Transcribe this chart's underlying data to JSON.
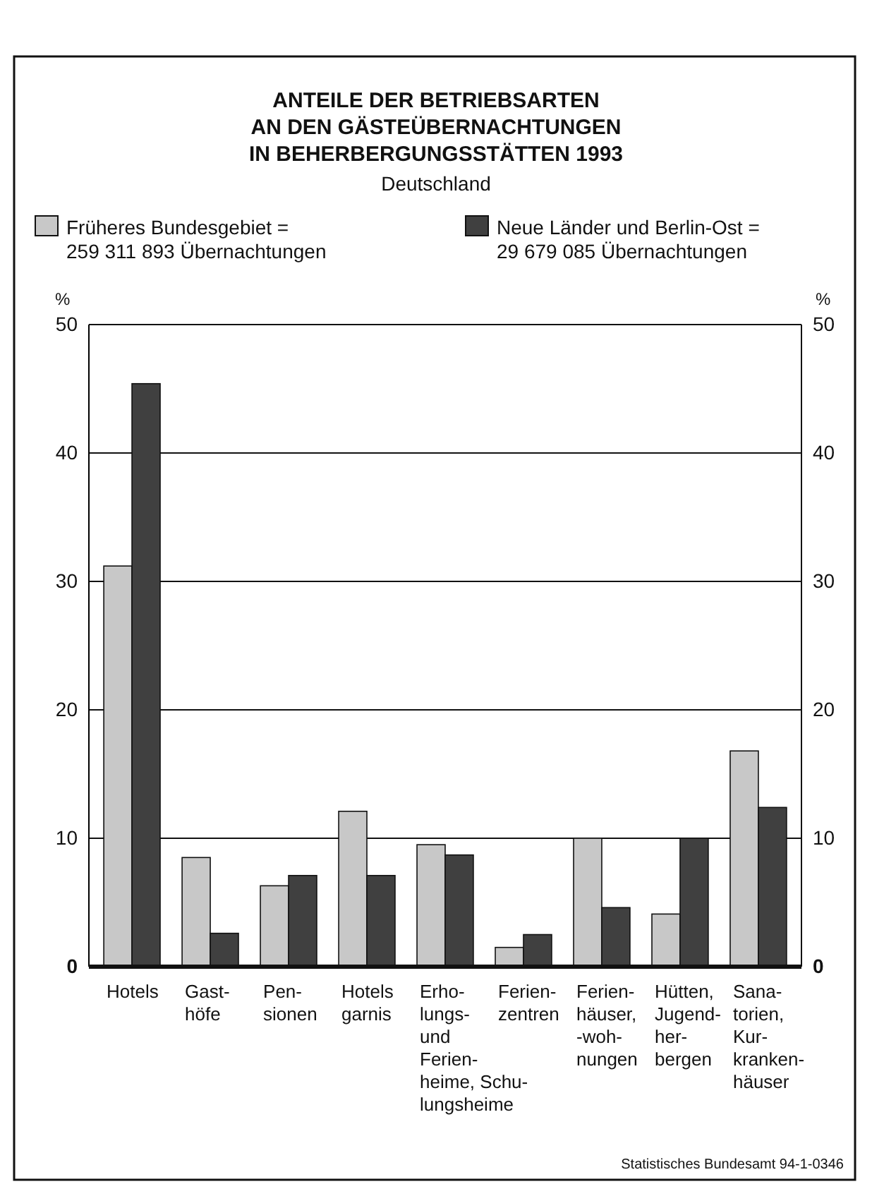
{
  "chart_data": {
    "type": "bar",
    "title": "ANTEILE DER BETRIEBSARTEN\nAN DEN GÄSTEÜBERNACHTUNGEN\nIN BEHERBERGUNGSSTÄTTEN 1993",
    "subtitle": "Deutschland",
    "ylabel": "%",
    "y2label": "%",
    "categories": [
      "Hotels",
      "Gast-\nhöfe",
      "Pen-\nsionen",
      "Hotels\ngarnis",
      "Erho-\nlungs-\nund\nFerien-\nheime, Schu-\nlungsheime",
      "Ferien-\nzentren",
      "Ferien-\nhäuser,\n-woh-\nnungen",
      "Hütten,\nJugend-\nher-\nbergen",
      "Sana-\ntorien,\nKur-\nkranken-\nhäuser"
    ],
    "series": [
      {
        "name": "Früheres Bundesgebiet =\n259 311 893 Übernachtungen",
        "color": "#c8c8c8",
        "values": [
          31.2,
          8.5,
          6.3,
          12.1,
          9.5,
          1.5,
          10.0,
          4.1,
          16.8
        ]
      },
      {
        "name": "Neue Länder und Berlin-Ost =\n29 679 085 Übernachtungen",
        "color": "#404040",
        "values": [
          45.4,
          2.6,
          7.1,
          7.1,
          8.7,
          2.5,
          4.6,
          10.0,
          12.4
        ]
      }
    ],
    "ylim": [
      0,
      50
    ],
    "yticks": [
      0,
      10,
      20,
      30,
      40,
      50
    ],
    "y2lim": [
      0,
      50
    ],
    "y2ticks": [
      0,
      10,
      20,
      30,
      40,
      50
    ],
    "grid": "y",
    "legend": "top",
    "annotations": [
      "Statistisches Bundesamt 94-1-0346"
    ]
  }
}
